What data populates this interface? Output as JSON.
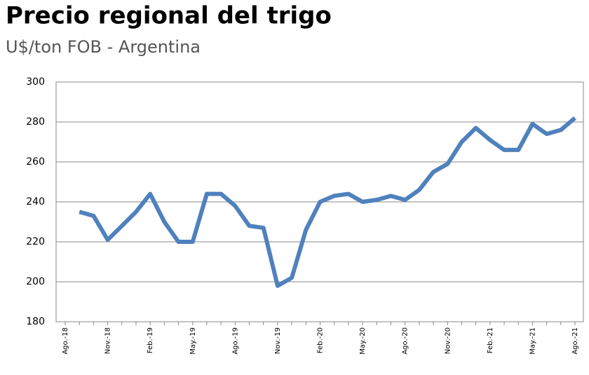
{
  "chart_data": {
    "type": "line",
    "title": "Precio regional del trigo",
    "subtitle": "U$/ton FOB - Argentina",
    "categories": [
      "Ago.-18",
      null,
      null,
      "Nov.-18",
      null,
      null,
      "Feb.-19",
      null,
      null,
      "May.-19",
      null,
      null,
      "Ago.-19",
      null,
      null,
      "Nov.-19",
      null,
      null,
      "Feb.-20",
      null,
      null,
      "May.-20",
      null,
      null,
      "Ago.-20",
      null,
      null,
      "Nov.-20",
      null,
      null,
      "Feb.-21",
      null,
      null,
      "May.-21",
      null,
      null,
      "Ago.-21"
    ],
    "series": [
      {
        "color": "#4f81bd",
        "values": [
          null,
          235,
          233,
          221,
          228,
          235,
          244,
          230,
          220,
          220,
          244,
          244,
          238,
          228,
          227,
          198,
          202,
          226,
          240,
          243,
          244,
          240,
          241,
          243,
          241,
          246,
          255,
          259,
          270,
          277,
          271,
          266,
          266,
          279,
          274,
          276,
          282
        ]
      }
    ],
    "ylim": [
      180,
      300
    ],
    "yticks": [
      180,
      200,
      220,
      240,
      260,
      280,
      300
    ],
    "grid": true
  }
}
